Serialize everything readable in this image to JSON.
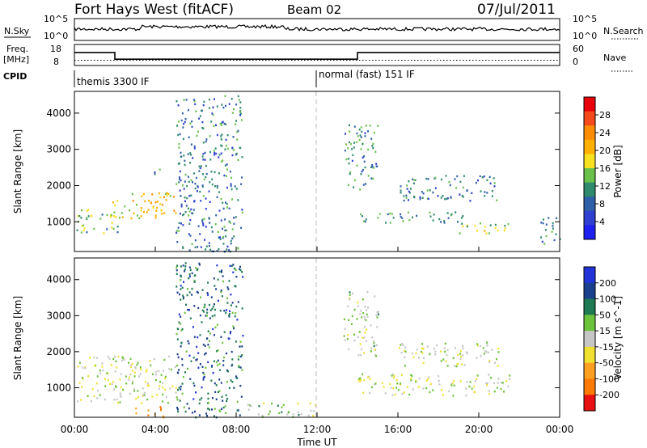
{
  "header": {
    "title": "Fort Hays West (fitACF)",
    "beam": "Beam 02",
    "date": "07/Jul/2011"
  },
  "strips": {
    "nsky_label": "N.Sky",
    "nsearch_label": "N.Search",
    "freq_label_1": "Freq.",
    "freq_label_2": "[MHz]",
    "nave_label": "Nave",
    "cpid_label": "CPID",
    "left_ticks_top": [
      "10^5",
      "10^0"
    ],
    "right_ticks_top": [
      "10^5",
      "10^0"
    ],
    "freq_ticks": [
      "18",
      "8"
    ],
    "nave_ticks": [
      "60",
      "0"
    ],
    "cpid_segments": [
      {
        "text": "themis 3300 IF",
        "start_hour": 0
      },
      {
        "text": "normal (fast) 151 IF",
        "start_hour": 12
      }
    ],
    "freq_trace": [
      [
        0,
        14.2
      ],
      [
        2.0,
        14.2
      ],
      [
        2.0,
        11.0
      ],
      [
        14.0,
        11.0
      ],
      [
        14.0,
        14.2
      ],
      [
        24,
        14.2
      ]
    ],
    "nave_level": 15
  },
  "axes": {
    "x_tick_labels": [
      "00:00",
      "04:00",
      "08:00",
      "12:00",
      "16:00",
      "20:00",
      "00:00"
    ],
    "x_label": "Time UT",
    "y_label_top": "Slant Range [km]",
    "y_label_bottom": "Slant Range [km]",
    "y_tick_labels": [
      "1000",
      "2000",
      "3000",
      "4000"
    ]
  },
  "colorbars": {
    "power": {
      "label": "Power [dB]",
      "ticks": [
        "28",
        "24",
        "20",
        "16",
        "12",
        "8",
        "4"
      ],
      "colors": [
        "#e8000b",
        "#f4491b",
        "#ff8c00",
        "#ffb000",
        "#f6e020",
        "#69c14b",
        "#2f8a6e",
        "#2f5fa8",
        "#2f3fd0",
        "#1e20f0"
      ]
    },
    "velocity": {
      "label": "Velocity [m s^-1]",
      "ticks": [
        "200",
        "100",
        "50",
        "15",
        "-15",
        "-50",
        "-100",
        "-200"
      ],
      "colors": [
        "#2234d8",
        "#1a3f8c",
        "#1e7a52",
        "#6cc23a",
        "#c6c6c6",
        "#f0e030",
        "#ffa020",
        "#ff7a00",
        "#e81010"
      ]
    }
  },
  "chart_data": [
    {
      "type": "heatmap",
      "title": "",
      "xlabel": "Time UT",
      "ylabel": "Slant Range [km]",
      "x_range_hours": [
        0,
        24
      ],
      "ylim": [
        180,
        4600
      ],
      "colorbar": "Power [dB]",
      "scatter_regions": [
        {
          "t0": 0.1,
          "t1": 2.2,
          "r0": 700,
          "r1": 1400,
          "value": 12
        },
        {
          "t0": 1.8,
          "t1": 5.0,
          "r0": 1100,
          "r1": 1900,
          "value": 18
        },
        {
          "t0": 3.6,
          "t1": 4.2,
          "r0": 2300,
          "r1": 2500,
          "value": 10
        },
        {
          "t0": 5.0,
          "t1": 8.3,
          "r0": 200,
          "r1": 4500,
          "value": 8
        },
        {
          "t0": 13.3,
          "t1": 15.0,
          "r0": 1900,
          "r1": 3700,
          "value": 9
        },
        {
          "t0": 14.0,
          "t1": 19.5,
          "r0": 1000,
          "r1": 1300,
          "value": 10
        },
        {
          "t0": 18.5,
          "t1": 21.5,
          "r0": 700,
          "r1": 1000,
          "value": 14
        },
        {
          "t0": 16.0,
          "t1": 21.0,
          "r0": 1600,
          "r1": 2300,
          "value": 8
        },
        {
          "t0": 23.0,
          "t1": 24.0,
          "r0": 400,
          "r1": 1200,
          "value": 10
        }
      ]
    },
    {
      "type": "heatmap",
      "title": "",
      "xlabel": "Time UT",
      "ylabel": "Slant Range [km]",
      "x_range_hours": [
        0,
        24
      ],
      "ylim": [
        180,
        4600
      ],
      "colorbar": "Velocity [m s^-1]",
      "scatter_regions": [
        {
          "t0": 0.1,
          "t1": 5.0,
          "r0": 600,
          "r1": 1900,
          "value": 0
        },
        {
          "t0": 3.0,
          "t1": 4.5,
          "r0": 200,
          "r1": 500,
          "value": -150
        },
        {
          "t0": 5.0,
          "t1": 8.3,
          "r0": 200,
          "r1": 4500,
          "value": 150
        },
        {
          "t0": 8.3,
          "t1": 12.0,
          "r0": 200,
          "r1": 600,
          "value": 30
        },
        {
          "t0": 13.3,
          "t1": 15.0,
          "r0": 1900,
          "r1": 3700,
          "value": 30
        },
        {
          "t0": 14.0,
          "t1": 21.5,
          "r0": 800,
          "r1": 1400,
          "value": 0
        },
        {
          "t0": 16.0,
          "t1": 21.0,
          "r0": 1600,
          "r1": 2300,
          "value": 0
        }
      ]
    }
  ]
}
